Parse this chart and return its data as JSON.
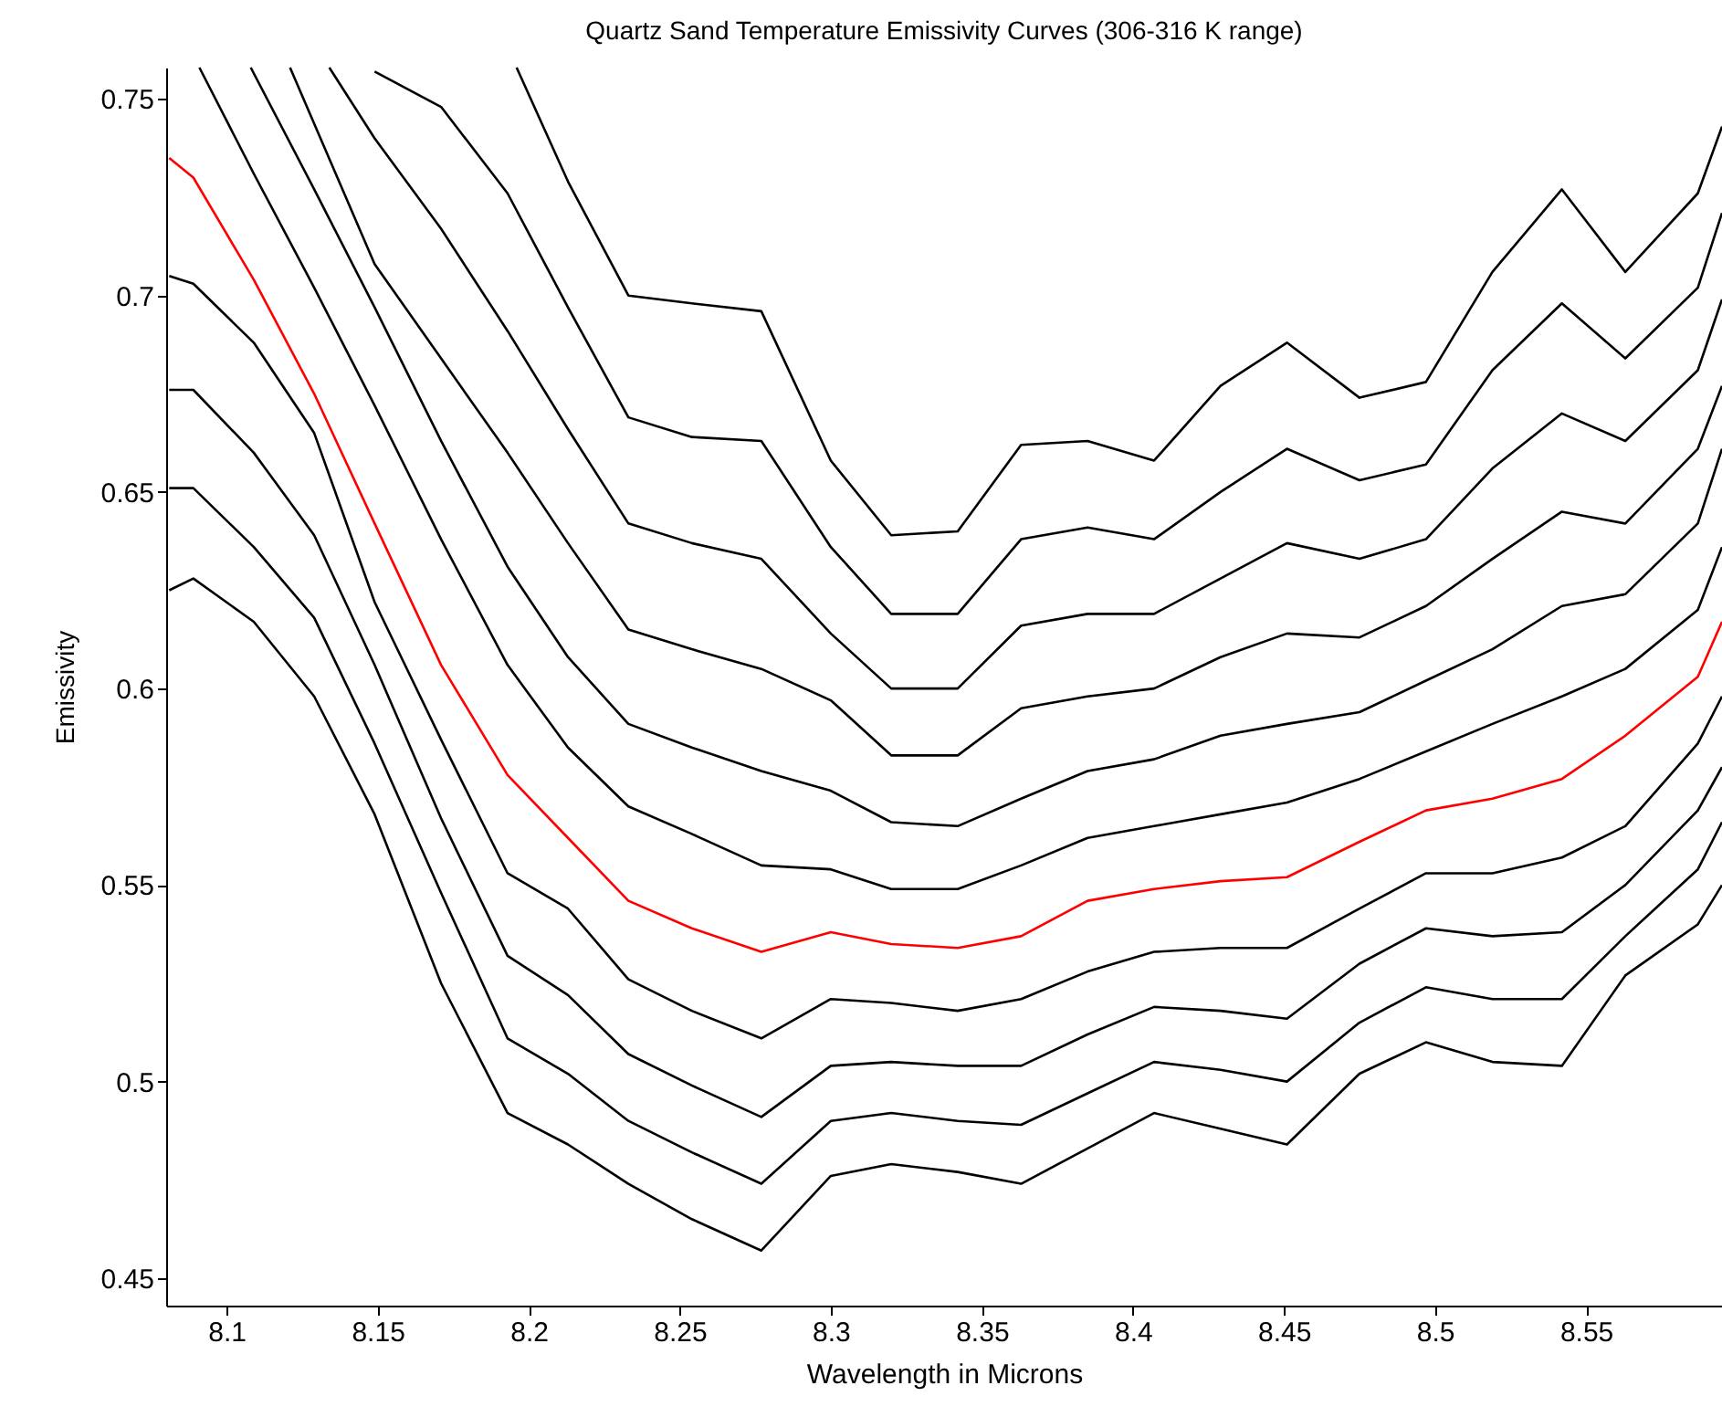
{
  "chart_data": {
    "type": "line",
    "title": "Quartz Sand Temperature Emissivity Curves (306-316 K range)",
    "xlabel": "Wavelength in Microns",
    "ylabel": "Emissivity",
    "xlim": [
      8.08,
      8.595
    ],
    "ylim": [
      0.443,
      0.758
    ],
    "xticks": [
      8.1,
      8.15,
      8.2,
      8.25,
      8.3,
      8.35,
      8.4,
      8.45,
      8.5,
      8.55
    ],
    "yticks": [
      0.45,
      0.5,
      0.55,
      0.6,
      0.65,
      0.7,
      0.75
    ],
    "x": [
      8.081,
      8.089,
      8.109,
      8.129,
      8.149,
      8.171,
      8.193,
      8.213,
      8.233,
      8.254,
      8.277,
      8.3,
      8.32,
      8.342,
      8.363,
      8.385,
      8.407,
      8.429,
      8.451,
      8.475,
      8.497,
      8.519,
      8.542,
      8.563,
      8.587,
      8.595
    ],
    "series": [
      {
        "color": "#000000",
        "values": [
          0.625,
          0.628,
          0.617,
          0.598,
          0.568,
          0.525,
          0.492,
          0.484,
          0.474,
          0.465,
          0.457,
          0.476,
          0.479,
          0.477,
          0.474,
          0.483,
          0.492,
          0.488,
          0.484,
          0.502,
          0.51,
          0.505,
          0.504,
          0.527,
          0.54,
          0.55
        ]
      },
      {
        "color": "#000000",
        "values": [
          0.651,
          0.651,
          0.636,
          0.618,
          0.586,
          0.548,
          0.511,
          0.502,
          0.49,
          0.482,
          0.474,
          0.49,
          0.492,
          0.49,
          0.489,
          0.497,
          0.505,
          0.503,
          0.5,
          0.515,
          0.524,
          0.521,
          0.521,
          0.537,
          0.554,
          0.566
        ]
      },
      {
        "color": "#000000",
        "values": [
          0.676,
          0.676,
          0.66,
          0.639,
          0.606,
          0.567,
          0.532,
          0.522,
          0.507,
          0.499,
          0.491,
          0.504,
          0.505,
          0.504,
          0.504,
          0.512,
          0.519,
          0.518,
          0.516,
          0.53,
          0.539,
          0.537,
          0.538,
          0.55,
          0.569,
          0.58
        ]
      },
      {
        "color": "#000000",
        "values": [
          0.705,
          0.703,
          0.688,
          0.665,
          0.622,
          0.587,
          0.553,
          0.544,
          0.526,
          0.518,
          0.511,
          0.521,
          0.52,
          0.518,
          0.521,
          0.528,
          0.533,
          0.534,
          0.534,
          0.544,
          0.553,
          0.553,
          0.557,
          0.565,
          0.586,
          0.598
        ]
      },
      {
        "color": "#ff0000",
        "values": [
          0.735,
          0.73,
          0.704,
          0.675,
          0.642,
          0.606,
          0.578,
          0.562,
          0.546,
          0.539,
          0.533,
          0.538,
          0.535,
          0.534,
          0.537,
          0.546,
          0.549,
          0.551,
          0.552,
          0.561,
          0.569,
          0.572,
          0.577,
          0.588,
          0.603,
          0.617
        ]
      },
      {
        "color": "#000000",
        "x": [
          8.091,
          8.109,
          8.129,
          8.149,
          8.171,
          8.193,
          8.213,
          8.233,
          8.254,
          8.277,
          8.3,
          8.32,
          8.342,
          8.363,
          8.385,
          8.407,
          8.429,
          8.451,
          8.475,
          8.497,
          8.519,
          8.542,
          8.563,
          8.587,
          8.595
        ],
        "values": [
          0.758,
          0.731,
          0.702,
          0.672,
          0.638,
          0.606,
          0.585,
          0.57,
          0.563,
          0.555,
          0.554,
          0.549,
          0.549,
          0.555,
          0.562,
          0.565,
          0.568,
          0.571,
          0.577,
          0.584,
          0.591,
          0.598,
          0.605,
          0.62,
          0.636
        ]
      },
      {
        "color": "#000000",
        "x": [
          8.108,
          8.129,
          8.149,
          8.171,
          8.193,
          8.213,
          8.233,
          8.254,
          8.277,
          8.3,
          8.32,
          8.342,
          8.363,
          8.385,
          8.407,
          8.429,
          8.451,
          8.475,
          8.497,
          8.519,
          8.542,
          8.563,
          8.587,
          8.595
        ],
        "values": [
          0.758,
          0.727,
          0.697,
          0.663,
          0.631,
          0.608,
          0.591,
          0.585,
          0.579,
          0.574,
          0.566,
          0.565,
          0.572,
          0.579,
          0.582,
          0.588,
          0.591,
          0.594,
          0.602,
          0.61,
          0.621,
          0.624,
          0.642,
          0.661
        ]
      },
      {
        "color": "#000000",
        "x": [
          8.121,
          8.149,
          8.171,
          8.193,
          8.213,
          8.233,
          8.254,
          8.277,
          8.3,
          8.32,
          8.342,
          8.363,
          8.385,
          8.407,
          8.429,
          8.451,
          8.475,
          8.497,
          8.519,
          8.542,
          8.563,
          8.587,
          8.595
        ],
        "values": [
          0.758,
          0.708,
          0.684,
          0.66,
          0.637,
          0.615,
          0.61,
          0.605,
          0.597,
          0.583,
          0.583,
          0.595,
          0.598,
          0.6,
          0.608,
          0.614,
          0.613,
          0.621,
          0.633,
          0.645,
          0.642,
          0.661,
          0.677
        ]
      },
      {
        "color": "#000000",
        "x": [
          8.134,
          8.149,
          8.171,
          8.193,
          8.213,
          8.233,
          8.254,
          8.277,
          8.3,
          8.32,
          8.342,
          8.363,
          8.385,
          8.407,
          8.429,
          8.451,
          8.475,
          8.497,
          8.519,
          8.542,
          8.563,
          8.587,
          8.595
        ],
        "values": [
          0.758,
          0.74,
          0.717,
          0.691,
          0.666,
          0.642,
          0.637,
          0.633,
          0.614,
          0.6,
          0.6,
          0.616,
          0.619,
          0.619,
          0.628,
          0.637,
          0.633,
          0.638,
          0.656,
          0.67,
          0.663,
          0.681,
          0.699
        ]
      },
      {
        "color": "#000000",
        "x": [
          8.149,
          8.171,
          8.193,
          8.213,
          8.233,
          8.254,
          8.277,
          8.3,
          8.32,
          8.342,
          8.363,
          8.385,
          8.407,
          8.429,
          8.451,
          8.475,
          8.497,
          8.519,
          8.542,
          8.563,
          8.587,
          8.595
        ],
        "values": [
          0.757,
          0.748,
          0.726,
          0.697,
          0.669,
          0.664,
          0.663,
          0.636,
          0.619,
          0.619,
          0.638,
          0.641,
          0.638,
          0.65,
          0.661,
          0.653,
          0.657,
          0.681,
          0.698,
          0.684,
          0.702,
          0.721
        ]
      },
      {
        "color": "#000000",
        "x": [
          8.196,
          8.213,
          8.233,
          8.254,
          8.277,
          8.3,
          8.32,
          8.342,
          8.363,
          8.385,
          8.407,
          8.429,
          8.451,
          8.475,
          8.497,
          8.519,
          8.542,
          8.563,
          8.587,
          8.595
        ],
        "values": [
          0.758,
          0.729,
          0.7,
          0.698,
          0.696,
          0.658,
          0.639,
          0.64,
          0.662,
          0.663,
          0.658,
          0.677,
          0.688,
          0.674,
          0.678,
          0.706,
          0.727,
          0.706,
          0.726,
          0.743
        ]
      }
    ]
  }
}
